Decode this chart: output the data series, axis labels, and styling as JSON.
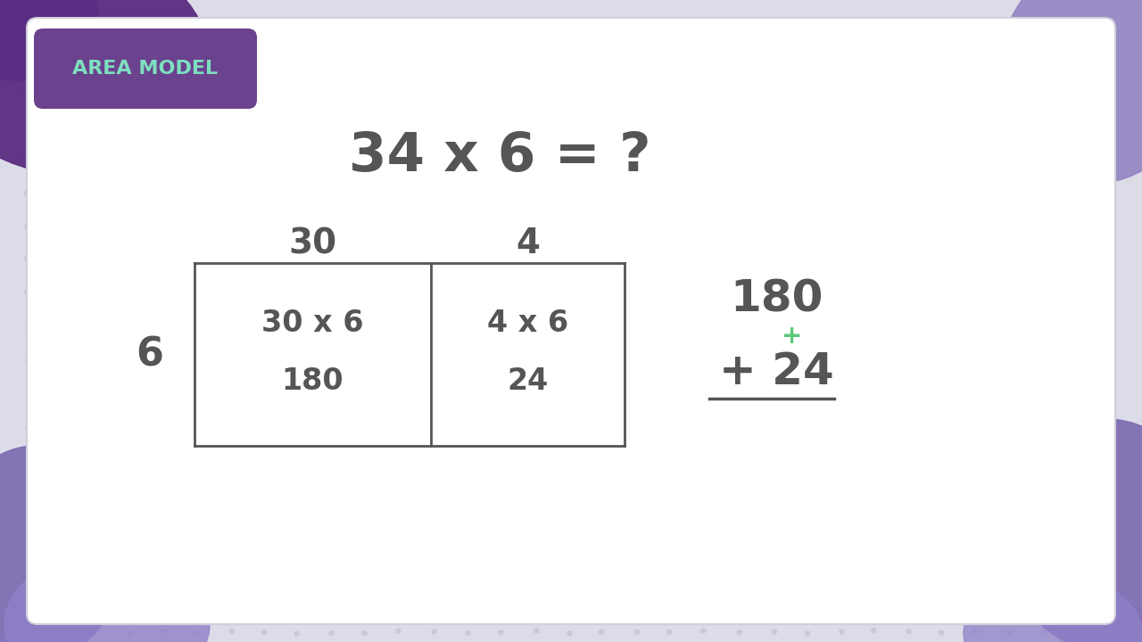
{
  "bg_color": "#dcdce8",
  "card_color": "#ffffff",
  "title_text": "34 x 6 = ?",
  "title_color": "#555555",
  "title_fontsize": 44,
  "label_color": "#555555",
  "header_bg": "#5a2d82",
  "header_label_color": "#7edfc0",
  "header_label": "AREA MODEL",
  "col_labels": [
    "30",
    "4"
  ],
  "row_label": "6",
  "cell1_top": "30 x 6",
  "cell1_bot": "180",
  "cell2_top": "4 x 6",
  "cell2_bot": "24",
  "sum_top": "180",
  "sum_plus_small": "+",
  "sum_bot": "+ 24",
  "plus_color": "#5cc87a",
  "text_color": "#555555",
  "dot_color": "#c8c8d8",
  "blob_tl_color": "#5a2d82",
  "blob_bl_color": "#7b68b0",
  "blob_tr_color": "#9080c0",
  "blob_br_color": "#7b68b0"
}
